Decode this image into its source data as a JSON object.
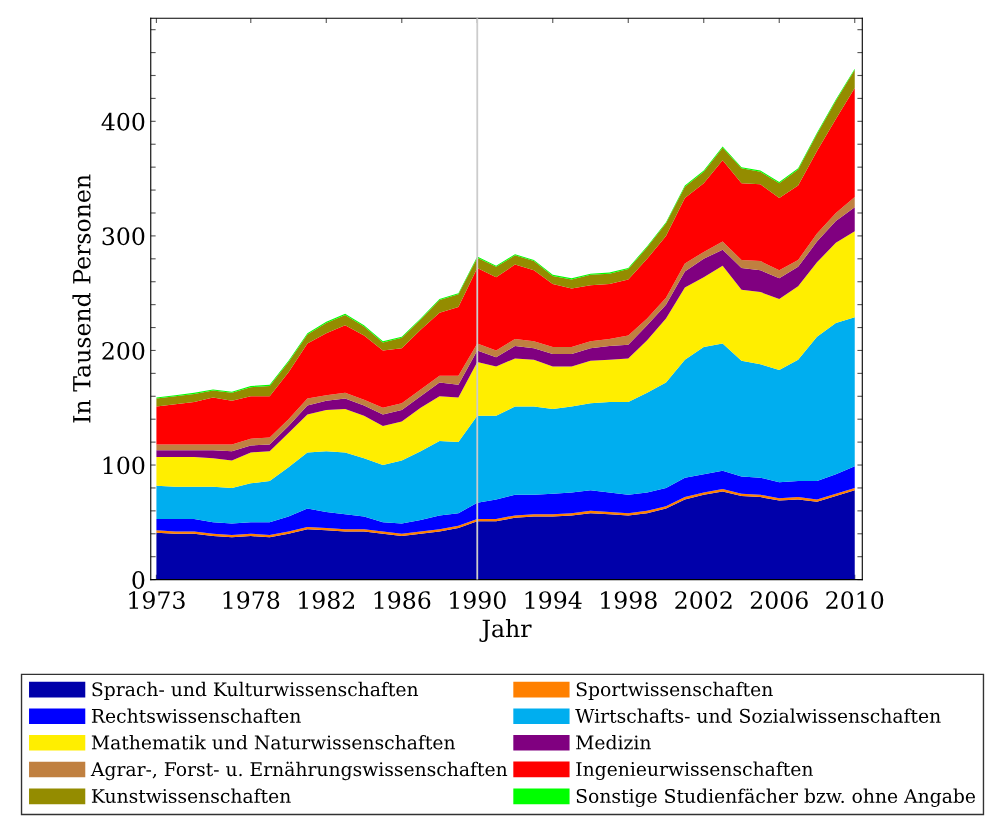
{
  "chart_data": {
    "type": "area",
    "stacked": true,
    "xlabel": "Jahr",
    "ylabel": "In Tausend Personen",
    "x": [
      1973,
      1974,
      1975,
      1976,
      1977,
      1978,
      1979,
      1980,
      1981,
      1982,
      1983,
      1984,
      1985,
      1986,
      1987,
      1988,
      1989,
      1990,
      1991,
      1992,
      1993,
      1994,
      1995,
      1996,
      1997,
      1998,
      1999,
      2000,
      2001,
      2002,
      2003,
      2004,
      2005,
      2006,
      2007,
      2008,
      2009,
      2010
    ],
    "series": [
      {
        "name": "Sprach- und Kulturwissenschaften",
        "color": "#0000aa",
        "values": [
          41,
          40,
          40,
          38,
          37,
          38,
          37,
          40,
          44,
          43,
          42,
          42,
          40,
          38,
          40,
          42,
          45,
          51,
          51,
          54,
          55,
          55,
          56,
          58,
          57,
          56,
          58,
          62,
          70,
          74,
          77,
          73,
          72,
          69,
          70,
          68,
          73,
          78
        ]
      },
      {
        "name": "Sportwissenschaften",
        "color": "#ff8000",
        "values": [
          2,
          2,
          2,
          2,
          2,
          2,
          2,
          2,
          2,
          2,
          2,
          2,
          2,
          2,
          2,
          2,
          2,
          2,
          2,
          2,
          2,
          2,
          2,
          2,
          2,
          2,
          2,
          2,
          2,
          2,
          2,
          2,
          2,
          2,
          2,
          2,
          2,
          2
        ]
      },
      {
        "name": "Rechtswissenschaften",
        "color": "#0000ff",
        "values": [
          10,
          11,
          11,
          10,
          10,
          10,
          11,
          13,
          16,
          14,
          13,
          11,
          8,
          9,
          10,
          12,
          11,
          14,
          17,
          18,
          17,
          18,
          18,
          18,
          17,
          16,
          16,
          16,
          17,
          16,
          16,
          15,
          15,
          14,
          14,
          16,
          17,
          19
        ]
      },
      {
        "name": "Wirtschafts- und Sozialwissenschaften",
        "color": "#00aeef",
        "values": [
          29,
          28,
          28,
          31,
          31,
          34,
          36,
          43,
          49,
          53,
          54,
          51,
          50,
          55,
          60,
          65,
          62,
          76,
          73,
          77,
          77,
          74,
          75,
          76,
          79,
          81,
          87,
          92,
          103,
          111,
          111,
          101,
          99,
          98,
          106,
          126,
          132,
          130
        ]
      },
      {
        "name": "Mathematik und Naturwissenschaften",
        "color": "#ffee00",
        "values": [
          25,
          26,
          26,
          25,
          24,
          27,
          26,
          30,
          33,
          36,
          38,
          37,
          34,
          34,
          38,
          39,
          39,
          47,
          43,
          42,
          41,
          37,
          35,
          37,
          37,
          38,
          46,
          56,
          63,
          61,
          68,
          62,
          63,
          62,
          64,
          65,
          70,
          75
        ]
      },
      {
        "name": "Medizin",
        "color": "#800080",
        "values": [
          6,
          6,
          6,
          7,
          8,
          6,
          6,
          6,
          8,
          8,
          9,
          9,
          10,
          10,
          10,
          12,
          11,
          10,
          8,
          11,
          10,
          11,
          11,
          11,
          12,
          12,
          13,
          12,
          14,
          16,
          14,
          19,
          19,
          18,
          17,
          18,
          19,
          21
        ]
      },
      {
        "name": "Agrar-, Forst- u. Ernährungswissenschaften",
        "color": "#c08040",
        "values": [
          5,
          5,
          5,
          5,
          6,
          6,
          6,
          6,
          6,
          5,
          5,
          5,
          6,
          6,
          6,
          6,
          8,
          6,
          6,
          6,
          6,
          6,
          6,
          6,
          6,
          8,
          6,
          6,
          7,
          6,
          7,
          7,
          8,
          7,
          6,
          7,
          7,
          9
        ]
      },
      {
        "name": "Ingenieurwissenschaften",
        "color": "#ff0000",
        "values": [
          33,
          35,
          37,
          41,
          38,
          37,
          36,
          41,
          48,
          54,
          59,
          56,
          50,
          48,
          52,
          55,
          60,
          66,
          64,
          65,
          62,
          55,
          51,
          49,
          48,
          49,
          52,
          54,
          57,
          60,
          71,
          67,
          67,
          63,
          65,
          72,
          82,
          95
        ]
      },
      {
        "name": "Kunstwissenschaften",
        "color": "#948c00",
        "values": [
          7,
          7,
          7,
          6,
          7,
          8,
          9,
          9,
          8,
          9,
          9,
          8,
          7,
          9,
          9,
          11,
          11,
          9,
          9,
          8,
          8,
          7,
          8,
          9,
          9,
          9,
          10,
          11,
          10,
          10,
          11,
          13,
          11,
          13,
          14,
          15,
          16,
          16
        ]
      },
      {
        "name": "Sonstige Studienfächer bzw. ohne Angabe",
        "color": "#00ff00",
        "values": [
          1,
          1,
          1,
          1,
          1,
          1,
          1,
          1,
          1,
          1,
          1,
          1,
          1,
          1,
          1,
          1,
          1,
          1,
          1,
          1,
          1,
          1,
          1,
          1,
          1,
          1,
          1,
          1,
          1,
          1,
          1,
          1,
          1,
          1,
          1,
          1,
          1,
          1
        ]
      }
    ],
    "xlim": [
      1972.7,
      2010.4
    ],
    "xticks": [
      1973,
      1978,
      1982,
      1986,
      1990,
      1994,
      1998,
      2002,
      2006,
      2010
    ],
    "ylim": [
      0,
      490
    ],
    "yticks": [
      0,
      {
        "value": 20,
        "label": null
      },
      {
        "value": 40,
        "label": null
      },
      {
        "value": 60,
        "label": null
      },
      {
        "value": 80,
        "label": null
      },
      100,
      {
        "value": 120,
        "label": null
      },
      {
        "value": 140,
        "label": null
      },
      {
        "value": 160,
        "label": null
      },
      {
        "value": 180,
        "label": null
      },
      200,
      {
        "value": 220,
        "label": null
      },
      {
        "value": 240,
        "label": null
      },
      {
        "value": 260,
        "label": null
      },
      {
        "value": 280,
        "label": null
      },
      300,
      {
        "value": 320,
        "label": null
      },
      {
        "value": 340,
        "label": null
      },
      {
        "value": 360,
        "label": null
      },
      {
        "value": 380,
        "label": null
      },
      400,
      {
        "value": 420,
        "label": null
      },
      {
        "value": 440,
        "label": null
      },
      {
        "value": 460,
        "label": null
      },
      {
        "value": 480,
        "label": null
      }
    ],
    "ref_lines": [
      {
        "axis": "x",
        "value": 1990,
        "color": "#cccccc"
      }
    ],
    "grid": false,
    "legend": "bottom"
  }
}
